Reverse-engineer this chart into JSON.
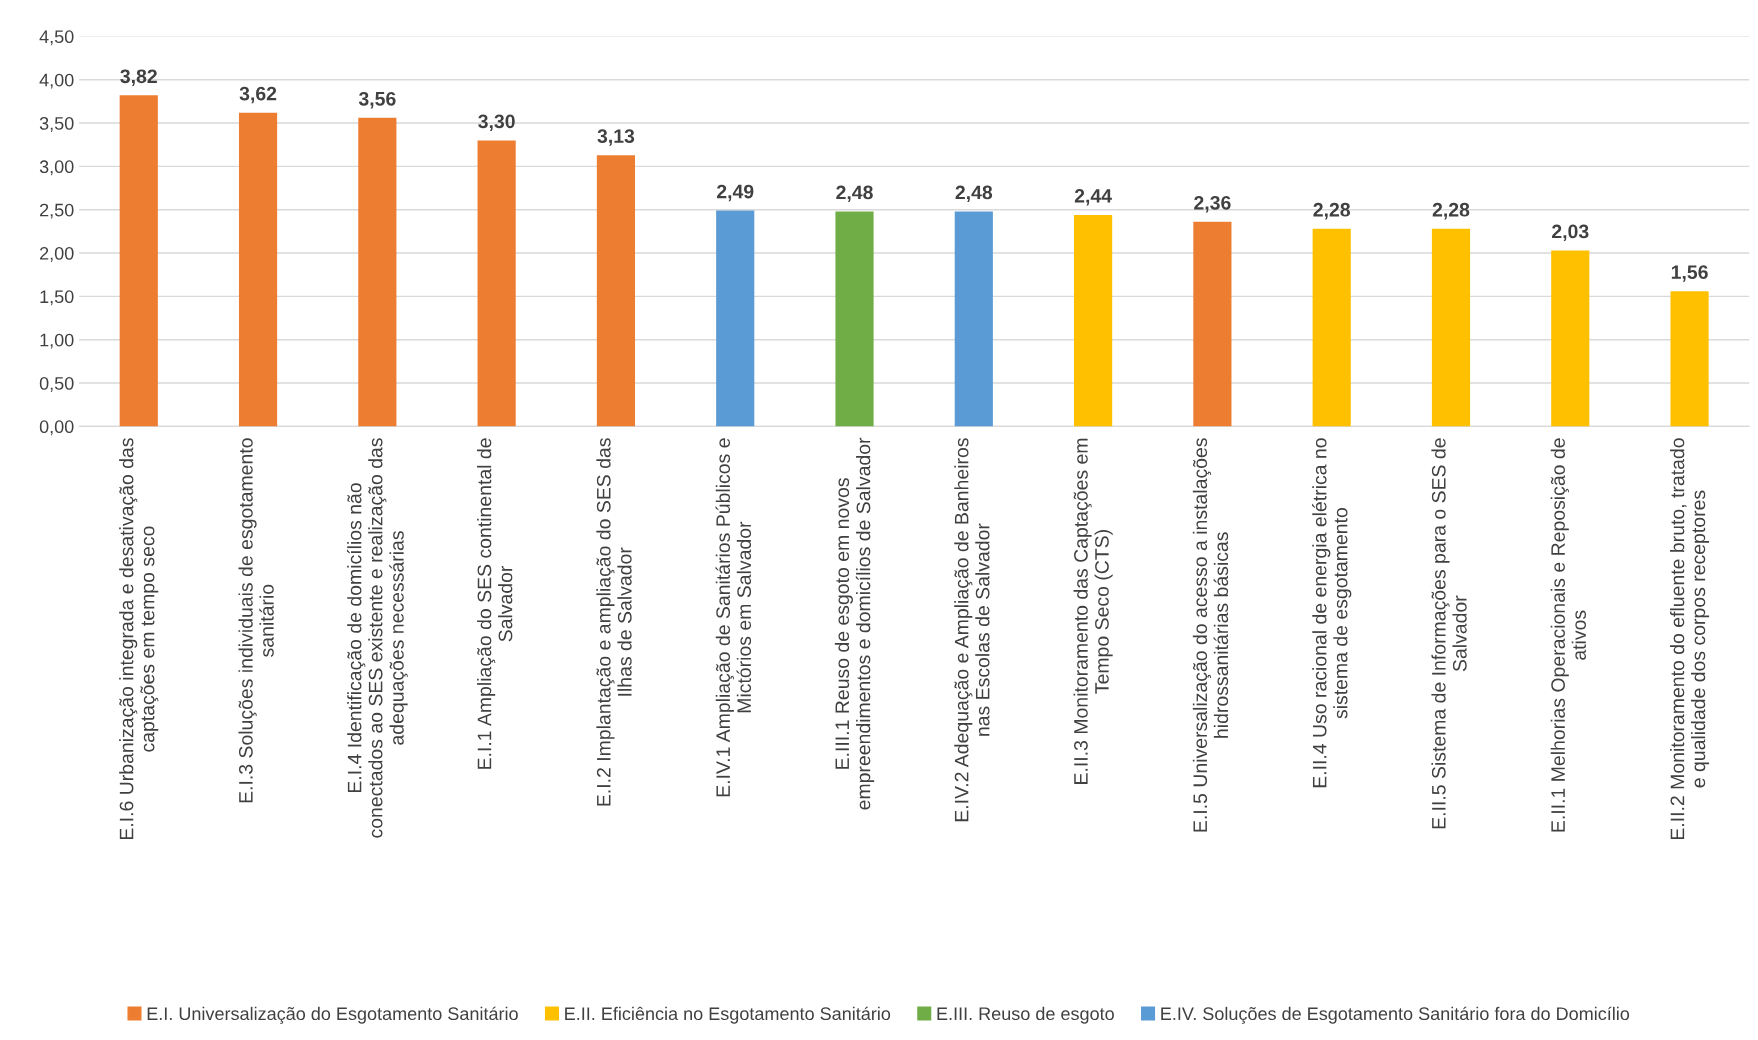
{
  "chart_data": {
    "type": "bar",
    "categories": [
      "E.I.6 Urbanização integrada e desativação das\ncaptações em tempo seco",
      "E.I.3 Soluções individuais de esgotamento\nsanitário",
      "E.I.4 Identificação de domicílios não\nconectados ao SES existente e realização das\nadequações necessárias",
      "E.I.1 Ampliação do SES continental de\nSalvador",
      "E.I.2 Implantação e ampliação do SES das\nIlhas de Salvador",
      "E.IV.1 Ampliação de Sanitários Públicos e\nMictórios em Salvador",
      "E.III.1 Reuso de esgoto em novos\nempreendimentos e domicílios de Salvador",
      "E.IV.2 Adequação e Ampliação de Banheiros\nnas Escolas de Salvador",
      "E.II.3 Monitoramento das Captações em\nTempo Seco (CTS)",
      "E.I.5 Universalização do acesso a instalações\nhidrossanitárias básicas",
      "E.II.4 Uso racional de energia elétrica no\nsistema de esgotamento",
      "E.II.5 Sistema de Informações para o SES de\nSalvador",
      "E.II.1 Melhorias Operacionais e Reposição de\nativos",
      "E.II.2 Monitoramento do efluente bruto, tratado\ne qualidade dos corpos receptores"
    ],
    "series": [
      {
        "name": "E.I. Universalização do Esgotamento Sanitário",
        "color": "#ed7d31",
        "values": [
          3.82,
          3.62,
          3.56,
          3.3,
          3.13,
          null,
          null,
          null,
          null,
          2.36,
          null,
          null,
          null,
          null
        ],
        "value_labels": [
          "3,82",
          "3,62",
          "3,56",
          "3,30",
          "3,13",
          null,
          null,
          null,
          null,
          "2,36",
          null,
          null,
          null,
          null
        ]
      },
      {
        "name": "E.II. Eficiência no Esgotamento Sanitário",
        "color": "#ffc000",
        "values": [
          null,
          null,
          null,
          null,
          null,
          null,
          null,
          null,
          2.44,
          null,
          2.28,
          2.28,
          2.03,
          1.56
        ],
        "value_labels": [
          null,
          null,
          null,
          null,
          null,
          null,
          null,
          null,
          "2,44",
          null,
          "2,28",
          "2,28",
          "2,03",
          "1,56"
        ]
      },
      {
        "name": "E.III. Reuso de esgoto",
        "color": "#70ad47",
        "values": [
          null,
          null,
          null,
          null,
          null,
          null,
          2.48,
          null,
          null,
          null,
          null,
          null,
          null,
          null
        ],
        "value_labels": [
          null,
          null,
          null,
          null,
          null,
          null,
          "2,48",
          null,
          null,
          null,
          null,
          null,
          null,
          null
        ]
      },
      {
        "name": "E.IV. Soluções de Esgotamento Sanitário fora do Domicílio",
        "color": "#5b9bd5",
        "values": [
          null,
          null,
          null,
          null,
          null,
          2.49,
          null,
          2.48,
          null,
          null,
          null,
          null,
          null,
          null
        ],
        "value_labels": [
          null,
          null,
          null,
          null,
          null,
          "2,49",
          null,
          "2,48",
          null,
          null,
          null,
          null,
          null,
          null
        ]
      }
    ],
    "ylim": [
      0,
      4.5
    ],
    "yticks": [
      {
        "value": 0,
        "label": "0,00"
      },
      {
        "value": 0.5,
        "label": "0,50"
      },
      {
        "value": 1,
        "label": "1,00"
      },
      {
        "value": 1.5,
        "label": "1,50"
      },
      {
        "value": 2,
        "label": "2,00"
      },
      {
        "value": 2.5,
        "label": "2,50"
      },
      {
        "value": 3,
        "label": "3,00"
      },
      {
        "value": 3.5,
        "label": "3,50"
      },
      {
        "value": 4,
        "label": "4,00"
      },
      {
        "value": 4.5,
        "label": "4,50"
      }
    ],
    "grid": "y",
    "legend": "bottom"
  }
}
